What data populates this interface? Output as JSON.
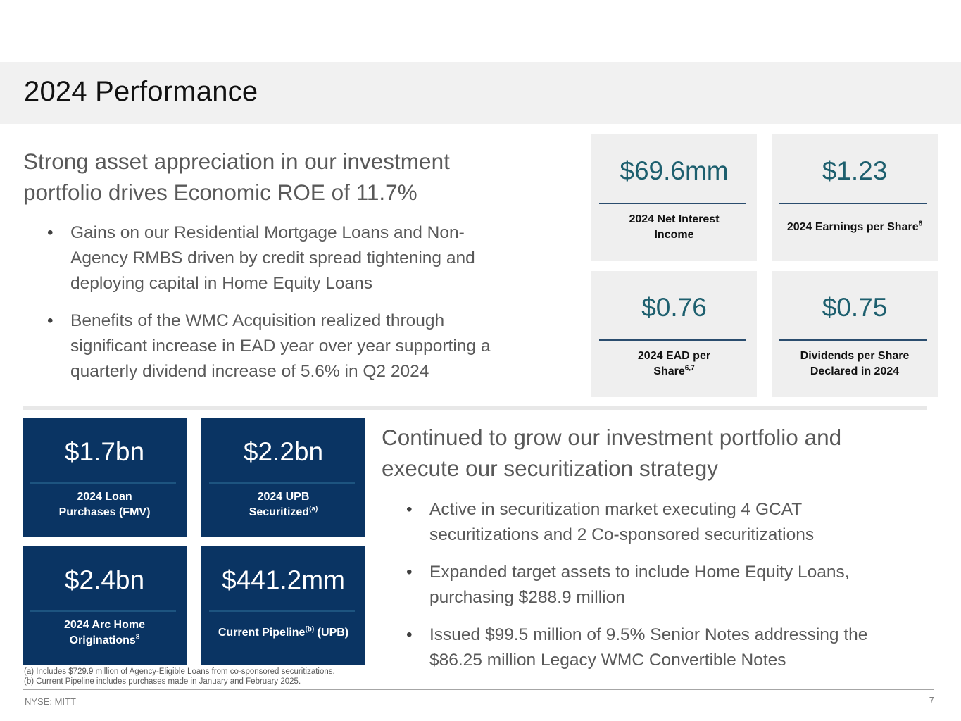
{
  "header": {
    "title": "2024 Performance"
  },
  "section1": {
    "headline_line1": "Strong asset appreciation in our investment",
    "headline_line2": "portfolio drives Economic ROE of 11.7%",
    "bullets": [
      {
        "line1": "Gains on our Residential Mortgage Loans and Non-",
        "line2": "Agency RMBS driven by credit spread tightening and",
        "line3": "deploying capital in Home Equity Loans"
      },
      {
        "line1": "Benefits of the WMC Acquisition realized through",
        "line2": "significant increase in EAD year over year supporting a",
        "line3": "quarterly dividend increase of 5.6% in Q2 2024"
      }
    ]
  },
  "kpis_top": [
    {
      "value": "$69.6mm",
      "label_line1": "2024 Net Interest",
      "label_line2": "Income",
      "sup": ""
    },
    {
      "value": "$1.23",
      "label_line1": "2024 Earnings per Share",
      "label_line2": "",
      "sup": "6"
    },
    {
      "value": "$0.76",
      "label_line1": "2024 EAD per",
      "label_line2": "Share",
      "sup": "6,7"
    },
    {
      "value": "$0.75",
      "label_line1": "Dividends per Share",
      "label_line2": "Declared in 2024",
      "sup": ""
    }
  ],
  "kpis_bottom": [
    {
      "value": "$1.7bn",
      "label_line1": "2024 Loan",
      "label_line2": "Purchases (FMV)"
    },
    {
      "value": "$2.2bn",
      "label_line1": "2024 UPB",
      "label_line2": "Securitized",
      "sup": "(a)"
    },
    {
      "value": "$2.4bn",
      "label_line1": "2024 Arc Home",
      "label_line2": "Originations",
      "sup": "8"
    },
    {
      "value": "$441.2mm",
      "label_pre": "Current Pipeline",
      "sup": "(b)",
      "label_post": " (UPB)"
    }
  ],
  "section2": {
    "headline_line1": "Continued to grow our investment portfolio and",
    "headline_line2": "execute our securitization strategy",
    "bullets": [
      {
        "line1": "Active in securitization market executing 4 GCAT",
        "line2": "securitizations and 2 Co-sponsored securitizations"
      },
      {
        "line1": "Expanded target assets to include Home Equity Loans,",
        "line2": "purchasing $288.9 million"
      },
      {
        "line1": "Issued $99.5 million of 9.5% Senior Notes addressing the",
        "line2": "$86.25 million Legacy WMC Convertible Notes"
      }
    ]
  },
  "footnotes": {
    "a": "(a) Includes $729.9 million of Agency-Eligible Loans from co-sponsored securitizations.",
    "b": "(b) Current Pipeline includes purchases made in January and February 2025."
  },
  "footer": {
    "ticker": "NYSE: MITT",
    "page_number": "7"
  },
  "colors": {
    "teal_value": "#1d5f6e",
    "navy_tile": "#0a3463",
    "body_text": "#595959"
  }
}
